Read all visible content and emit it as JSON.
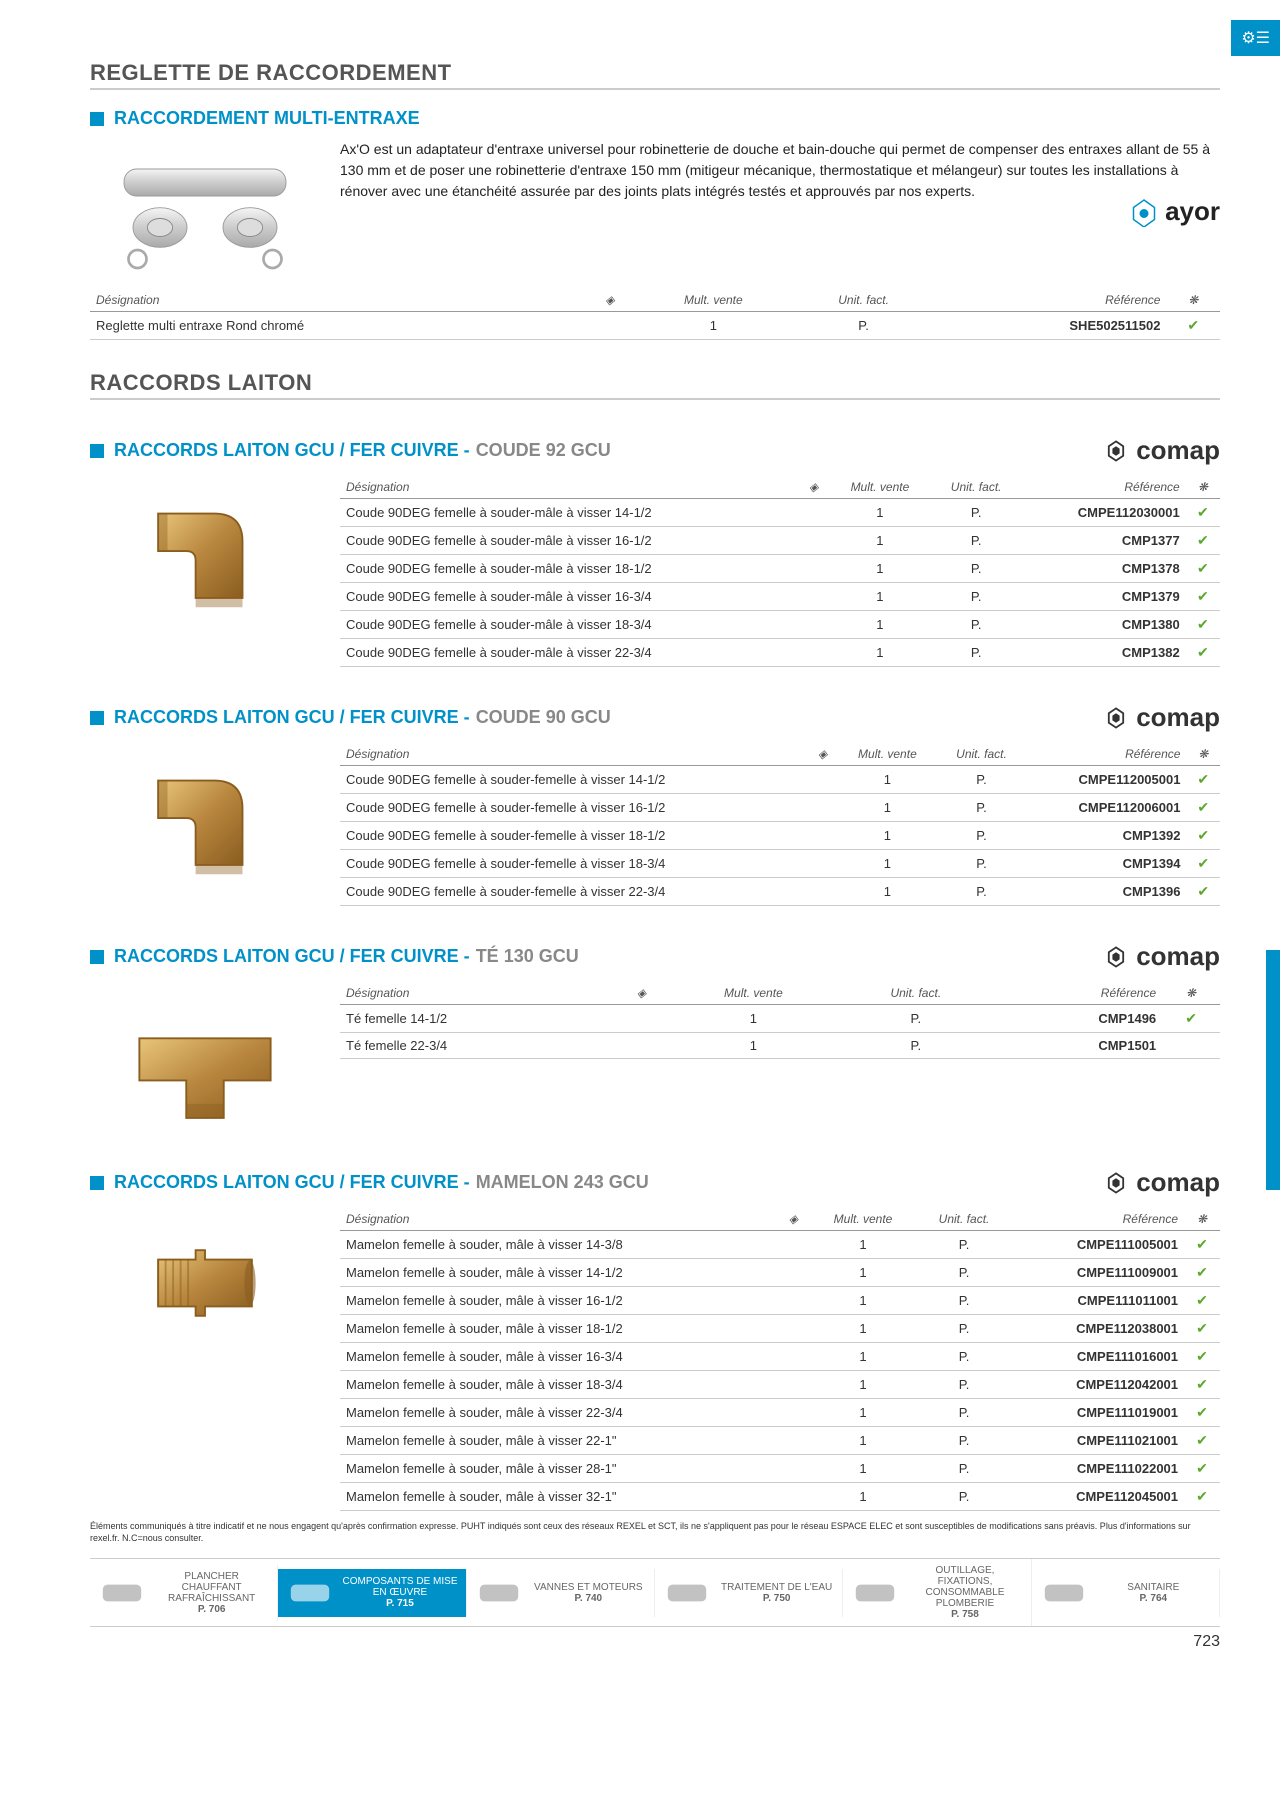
{
  "pageNumber": "723",
  "colors": {
    "accent": "#0091c8",
    "check": "#5aa82e",
    "text": "#333",
    "brass": "#b8863e",
    "brassDark": "#8a5d1f"
  },
  "icons": {
    "pageTab": "⚙☰",
    "wifi": "◈",
    "fan": "❋",
    "check": "✔"
  },
  "section1": {
    "title": "REGLETTE DE RACCORDEMENT",
    "product": {
      "blue": "RACCORDEMENT MULTI-ENTRAXE",
      "gray": ""
    },
    "brand": "ayor",
    "description": "Ax'O est un adaptateur d'entraxe universel pour robinetterie de douche et bain-douche qui permet de compenser des entraxes allant de 55 à 130 mm et de poser une robinetterie d'entraxe 150 mm (mitigeur mécanique, thermostatique et mélangeur) sur toutes les installations à rénover avec une étanchéité assurée par des joints plats intégrés testés et approuvés par nos experts.",
    "headers": [
      "Désignation",
      "",
      "Mult. vente",
      "Unit. fact.",
      "Référence",
      ""
    ],
    "rows": [
      {
        "designation": "Reglette multi entraxe Rond chromé",
        "mult": "1",
        "unit": "P.",
        "reference": "SHE502511502",
        "check": "✔"
      }
    ]
  },
  "section2": {
    "title": "RACCORDS LAITON",
    "products": [
      {
        "blue": "RACCORDS LAITON GCU / FER CUIVRE -",
        "gray": "COUDE 92 GCU",
        "brand": "comap",
        "shape": "elbow",
        "headers": [
          "Désignation",
          "",
          "Mult. vente",
          "Unit. fact.",
          "Référence",
          ""
        ],
        "rows": [
          {
            "designation": "Coude 90DEG femelle à souder-mâle à visser 14-1/2",
            "mult": "1",
            "unit": "P.",
            "reference": "CMPE112030001",
            "check": "✔"
          },
          {
            "designation": "Coude 90DEG femelle à souder-mâle à visser 16-1/2",
            "mult": "1",
            "unit": "P.",
            "reference": "CMP1377",
            "check": "✔"
          },
          {
            "designation": "Coude 90DEG femelle à souder-mâle à visser 18-1/2",
            "mult": "1",
            "unit": "P.",
            "reference": "CMP1378",
            "check": "✔"
          },
          {
            "designation": "Coude 90DEG femelle à souder-mâle à visser 16-3/4",
            "mult": "1",
            "unit": "P.",
            "reference": "CMP1379",
            "check": "✔"
          },
          {
            "designation": "Coude 90DEG femelle à souder-mâle à visser 18-3/4",
            "mult": "1",
            "unit": "P.",
            "reference": "CMP1380",
            "check": "✔"
          },
          {
            "designation": "Coude 90DEG femelle à souder-mâle à visser 22-3/4",
            "mult": "1",
            "unit": "P.",
            "reference": "CMP1382",
            "check": "✔"
          }
        ]
      },
      {
        "blue": "RACCORDS LAITON GCU / FER CUIVRE -",
        "gray": "COUDE 90 GCU",
        "brand": "comap",
        "shape": "elbow",
        "headers": [
          "Désignation",
          "",
          "Mult. vente",
          "Unit. fact.",
          "Référence",
          ""
        ],
        "rows": [
          {
            "designation": "Coude 90DEG femelle à souder-femelle à visser 14-1/2",
            "mult": "1",
            "unit": "P.",
            "reference": "CMPE112005001",
            "check": "✔"
          },
          {
            "designation": "Coude 90DEG femelle à souder-femelle à visser 16-1/2",
            "mult": "1",
            "unit": "P.",
            "reference": "CMPE112006001",
            "check": "✔"
          },
          {
            "designation": "Coude 90DEG femelle à souder-femelle à visser 18-1/2",
            "mult": "1",
            "unit": "P.",
            "reference": "CMP1392",
            "check": "✔"
          },
          {
            "designation": "Coude 90DEG femelle à souder-femelle à visser 18-3/4",
            "mult": "1",
            "unit": "P.",
            "reference": "CMP1394",
            "check": "✔"
          },
          {
            "designation": "Coude 90DEG femelle à souder-femelle à visser 22-3/4",
            "mult": "1",
            "unit": "P.",
            "reference": "CMP1396",
            "check": "✔"
          }
        ]
      },
      {
        "blue": "RACCORDS LAITON GCU / FER CUIVRE -",
        "gray": "TÉ 130 GCU",
        "brand": "comap",
        "shape": "tee",
        "headers": [
          "Désignation",
          "",
          "Mult. vente",
          "Unit. fact.",
          "Référence",
          ""
        ],
        "rows": [
          {
            "designation": "Té femelle 14-1/2",
            "mult": "1",
            "unit": "P.",
            "reference": "CMP1496",
            "check": "✔"
          },
          {
            "designation": "Té femelle 22-3/4",
            "mult": "1",
            "unit": "P.",
            "reference": "CMP1501",
            "check": ""
          }
        ]
      },
      {
        "blue": "RACCORDS LAITON GCU / FER CUIVRE -",
        "gray": "MAMELON 243 GCU",
        "brand": "comap",
        "shape": "nipple",
        "headers": [
          "Désignation",
          "",
          "Mult. vente",
          "Unit. fact.",
          "Référence",
          ""
        ],
        "rows": [
          {
            "designation": "Mamelon femelle à souder, mâle à visser 14-3/8",
            "mult": "1",
            "unit": "P.",
            "reference": "CMPE111005001",
            "check": "✔"
          },
          {
            "designation": "Mamelon femelle à souder, mâle à visser 14-1/2",
            "mult": "1",
            "unit": "P.",
            "reference": "CMPE111009001",
            "check": "✔"
          },
          {
            "designation": "Mamelon femelle à souder, mâle à visser 16-1/2",
            "mult": "1",
            "unit": "P.",
            "reference": "CMPE111011001",
            "check": "✔"
          },
          {
            "designation": "Mamelon femelle à souder, mâle à visser 18-1/2",
            "mult": "1",
            "unit": "P.",
            "reference": "CMPE112038001",
            "check": "✔"
          },
          {
            "designation": "Mamelon femelle à souder, mâle à visser 16-3/4",
            "mult": "1",
            "unit": "P.",
            "reference": "CMPE111016001",
            "check": "✔"
          },
          {
            "designation": "Mamelon femelle à souder, mâle à visser 18-3/4",
            "mult": "1",
            "unit": "P.",
            "reference": "CMPE112042001",
            "check": "✔"
          },
          {
            "designation": "Mamelon femelle à souder, mâle à visser 22-3/4",
            "mult": "1",
            "unit": "P.",
            "reference": "CMPE111019001",
            "check": "✔"
          },
          {
            "designation": "Mamelon femelle à souder, mâle à visser 22-1\"",
            "mult": "1",
            "unit": "P.",
            "reference": "CMPE111021001",
            "check": "✔"
          },
          {
            "designation": "Mamelon femelle à souder, mâle à visser 28-1\"",
            "mult": "1",
            "unit": "P.",
            "reference": "CMPE111022001",
            "check": "✔"
          },
          {
            "designation": "Mamelon femelle à souder, mâle à visser 32-1\"",
            "mult": "1",
            "unit": "P.",
            "reference": "CMPE112045001",
            "check": "✔"
          }
        ]
      }
    ]
  },
  "footerNote": "Éléments communiqués à titre indicatif et ne nous engagent qu'après confirmation expresse. PUHT indiqués sont ceux des réseaux REXEL et SCT, ils ne s'appliquent pas pour le réseau ESPACE ELEC et sont susceptibles de modifications sans préavis. Plus d'informations sur rexel.fr. N.C=nous consulter.",
  "bottomNav": [
    {
      "label": "PLANCHER CHAUFFANT RAFRAÎCHISSANT",
      "page": "P. 706",
      "active": false
    },
    {
      "label": "COMPOSANTS DE MISE EN ŒUVRE",
      "page": "P. 715",
      "active": true
    },
    {
      "label": "VANNES ET MOTEURS",
      "page": "P. 740",
      "active": false
    },
    {
      "label": "TRAITEMENT DE L'EAU",
      "page": "P. 750",
      "active": false
    },
    {
      "label": "OUTILLAGE, FIXATIONS, CONSOMMABLE PLOMBERIE",
      "page": "P. 758",
      "active": false
    },
    {
      "label": "SANITAIRE",
      "page": "P. 764",
      "active": false
    }
  ]
}
